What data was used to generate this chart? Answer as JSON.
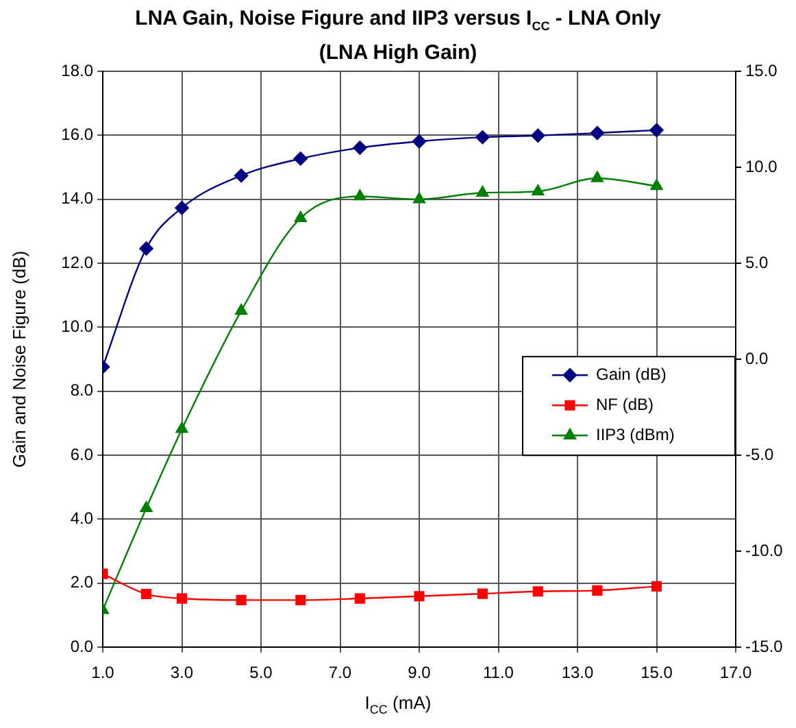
{
  "chart_data": {
    "type": "line",
    "title": "LNA Gain, Noise Figure and IIP3 versus I$_{CC}$ - LNA Only\n(LNA High Gain)",
    "xlabel": "I$_{CC}$ (mA)",
    "ylabel": "Gain and Noise Figure (dB)",
    "x": [
      1,
      2.1,
      3,
      4.5,
      6,
      7.5,
      9,
      10.6,
      12,
      13.5,
      15
    ],
    "xlim": [
      1,
      17
    ],
    "xticks": [
      {
        "value": 1,
        "label": "1.0"
      },
      {
        "value": 3,
        "label": "3.0"
      },
      {
        "value": 5,
        "label": "5.0"
      },
      {
        "value": 7,
        "label": "7.0"
      },
      {
        "value": 9,
        "label": "9.0"
      },
      {
        "value": 11,
        "label": "11.0"
      },
      {
        "value": 13,
        "label": "13.0"
      },
      {
        "value": 15,
        "label": "15.0"
      },
      {
        "value": 17,
        "label": "17.0"
      }
    ],
    "ylim": [
      0,
      18
    ],
    "yticks": [
      {
        "value": 0,
        "label": "0.0"
      },
      {
        "value": 2,
        "label": "2.0"
      },
      {
        "value": 4,
        "label": "4.0"
      },
      {
        "value": 6,
        "label": "6.0"
      },
      {
        "value": 8,
        "label": "8.0"
      },
      {
        "value": 10,
        "label": "10.0"
      },
      {
        "value": 12,
        "label": "12.0"
      },
      {
        "value": 14,
        "label": "14.0"
      },
      {
        "value": 16,
        "label": "16.0"
      },
      {
        "value": 18,
        "label": "18.0"
      }
    ],
    "y2lim": [
      -15,
      15
    ],
    "y2ticks": [
      {
        "value": -15,
        "label": "-15.0"
      },
      {
        "value": -10,
        "label": "-10.0"
      },
      {
        "value": -5,
        "label": "-5.0"
      },
      {
        "value": 0,
        "label": "0.0"
      },
      {
        "value": 5,
        "label": "5.0"
      },
      {
        "value": 10,
        "label": "10.0"
      },
      {
        "value": 15,
        "label": "15.0"
      }
    ],
    "grid": true,
    "legend": "right",
    "line_style": "solid",
    "series": [
      {
        "name": "Gain (dB)",
        "color": "#000080",
        "marker": "diamond",
        "values": [
          8.76,
          12.46,
          13.73,
          14.74,
          15.27,
          15.61,
          15.81,
          15.94,
          15.99,
          16.07,
          16.16
        ]
      },
      {
        "name": "NF (dB)",
        "color": "#ff0000",
        "marker": "square",
        "values": [
          2.29,
          1.66,
          1.52,
          1.47,
          1.47,
          1.52,
          1.59,
          1.67,
          1.74,
          1.77,
          1.9
        ]
      },
      {
        "name": "IIP3 (dBm)",
        "color": "#008000",
        "marker": "triangle",
        "axis": "y2",
        "values": [
          -13.07,
          -7.76,
          -3.64,
          2.52,
          7.35,
          8.48,
          8.33,
          8.67,
          8.74,
          9.43,
          9.02
        ]
      }
    ]
  }
}
